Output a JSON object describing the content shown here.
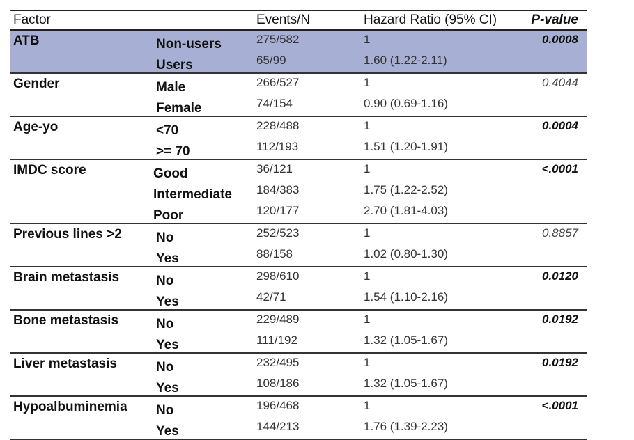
{
  "header": {
    "factor": "Factor",
    "events": "Events/N",
    "hr": "Hazard Ratio (95% CI)",
    "pvalue": "P-value"
  },
  "groups": [
    {
      "factor": "ATB",
      "p_value": "0.0008",
      "significant": true,
      "highlight": true,
      "rows": [
        {
          "level": "Non-users",
          "events": "275/582",
          "hr": "1"
        },
        {
          "level": "Users",
          "events": "65/99",
          "hr": "1.60 (1.22-2.11)"
        }
      ]
    },
    {
      "factor": "Gender",
      "p_value": "0.4044",
      "significant": false,
      "rows": [
        {
          "level": "Male",
          "events": "266/527",
          "hr": "1"
        },
        {
          "level": "Female",
          "events": "74/154",
          "hr": "0.90 (0.69-1.16)"
        }
      ]
    },
    {
      "factor": "Age-yo",
      "p_value": "0.0004",
      "significant": true,
      "rows": [
        {
          "level": "<70",
          "events": "228/488",
          "hr": "1"
        },
        {
          "level": ">= 70",
          "events": "112/193",
          "hr": "1.51 (1.20-1.91)"
        }
      ]
    },
    {
      "factor": "IMDC score",
      "p_value": "<.0001",
      "significant": true,
      "level_left": 206,
      "rows": [
        {
          "level": "Good",
          "events": "36/121",
          "hr": "1"
        },
        {
          "level": "Intermediate",
          "events": "184/383",
          "hr": "1.75 (1.22-2.52)"
        },
        {
          "level": "Poor",
          "events": "120/177",
          "hr": "2.70 (1.81-4.03)"
        }
      ]
    },
    {
      "factor": "Previous lines >2",
      "p_value": "0.8857",
      "significant": false,
      "rows": [
        {
          "level": "No",
          "events": "252/523",
          "hr": "1"
        },
        {
          "level": "Yes",
          "events": "88/158",
          "hr": "1.02 (0.80-1.30)"
        }
      ]
    },
    {
      "factor": "Brain metastasis",
      "p_value": "0.0120",
      "significant": true,
      "rows": [
        {
          "level": "No",
          "events": "298/610",
          "hr": "1"
        },
        {
          "level": "Yes",
          "events": "42/71",
          "hr": "1.54 (1.10-2.16)"
        }
      ]
    },
    {
      "factor": "Bone metastasis",
      "p_value": "0.0192",
      "significant": true,
      "rows": [
        {
          "level": "No",
          "events": "229/489",
          "hr": "1"
        },
        {
          "level": "Yes",
          "events": "111/192",
          "hr": "1.32 (1.05-1.67)"
        }
      ]
    },
    {
      "factor": "Liver metastasis",
      "p_value": "0.0192",
      "significant": true,
      "rows": [
        {
          "level": "No",
          "events": "232/495",
          "hr": "1"
        },
        {
          "level": "Yes",
          "events": "108/186",
          "hr": "1.32 (1.05-1.67)"
        }
      ]
    },
    {
      "factor": "Hypoalbuminemia",
      "p_value": "<.0001",
      "significant": true,
      "rows": [
        {
          "level": "No",
          "events": "196/468",
          "hr": "1"
        },
        {
          "level": "Yes",
          "events": "144/213",
          "hr": "1.76 (1.39-2.23)"
        }
      ]
    }
  ]
}
